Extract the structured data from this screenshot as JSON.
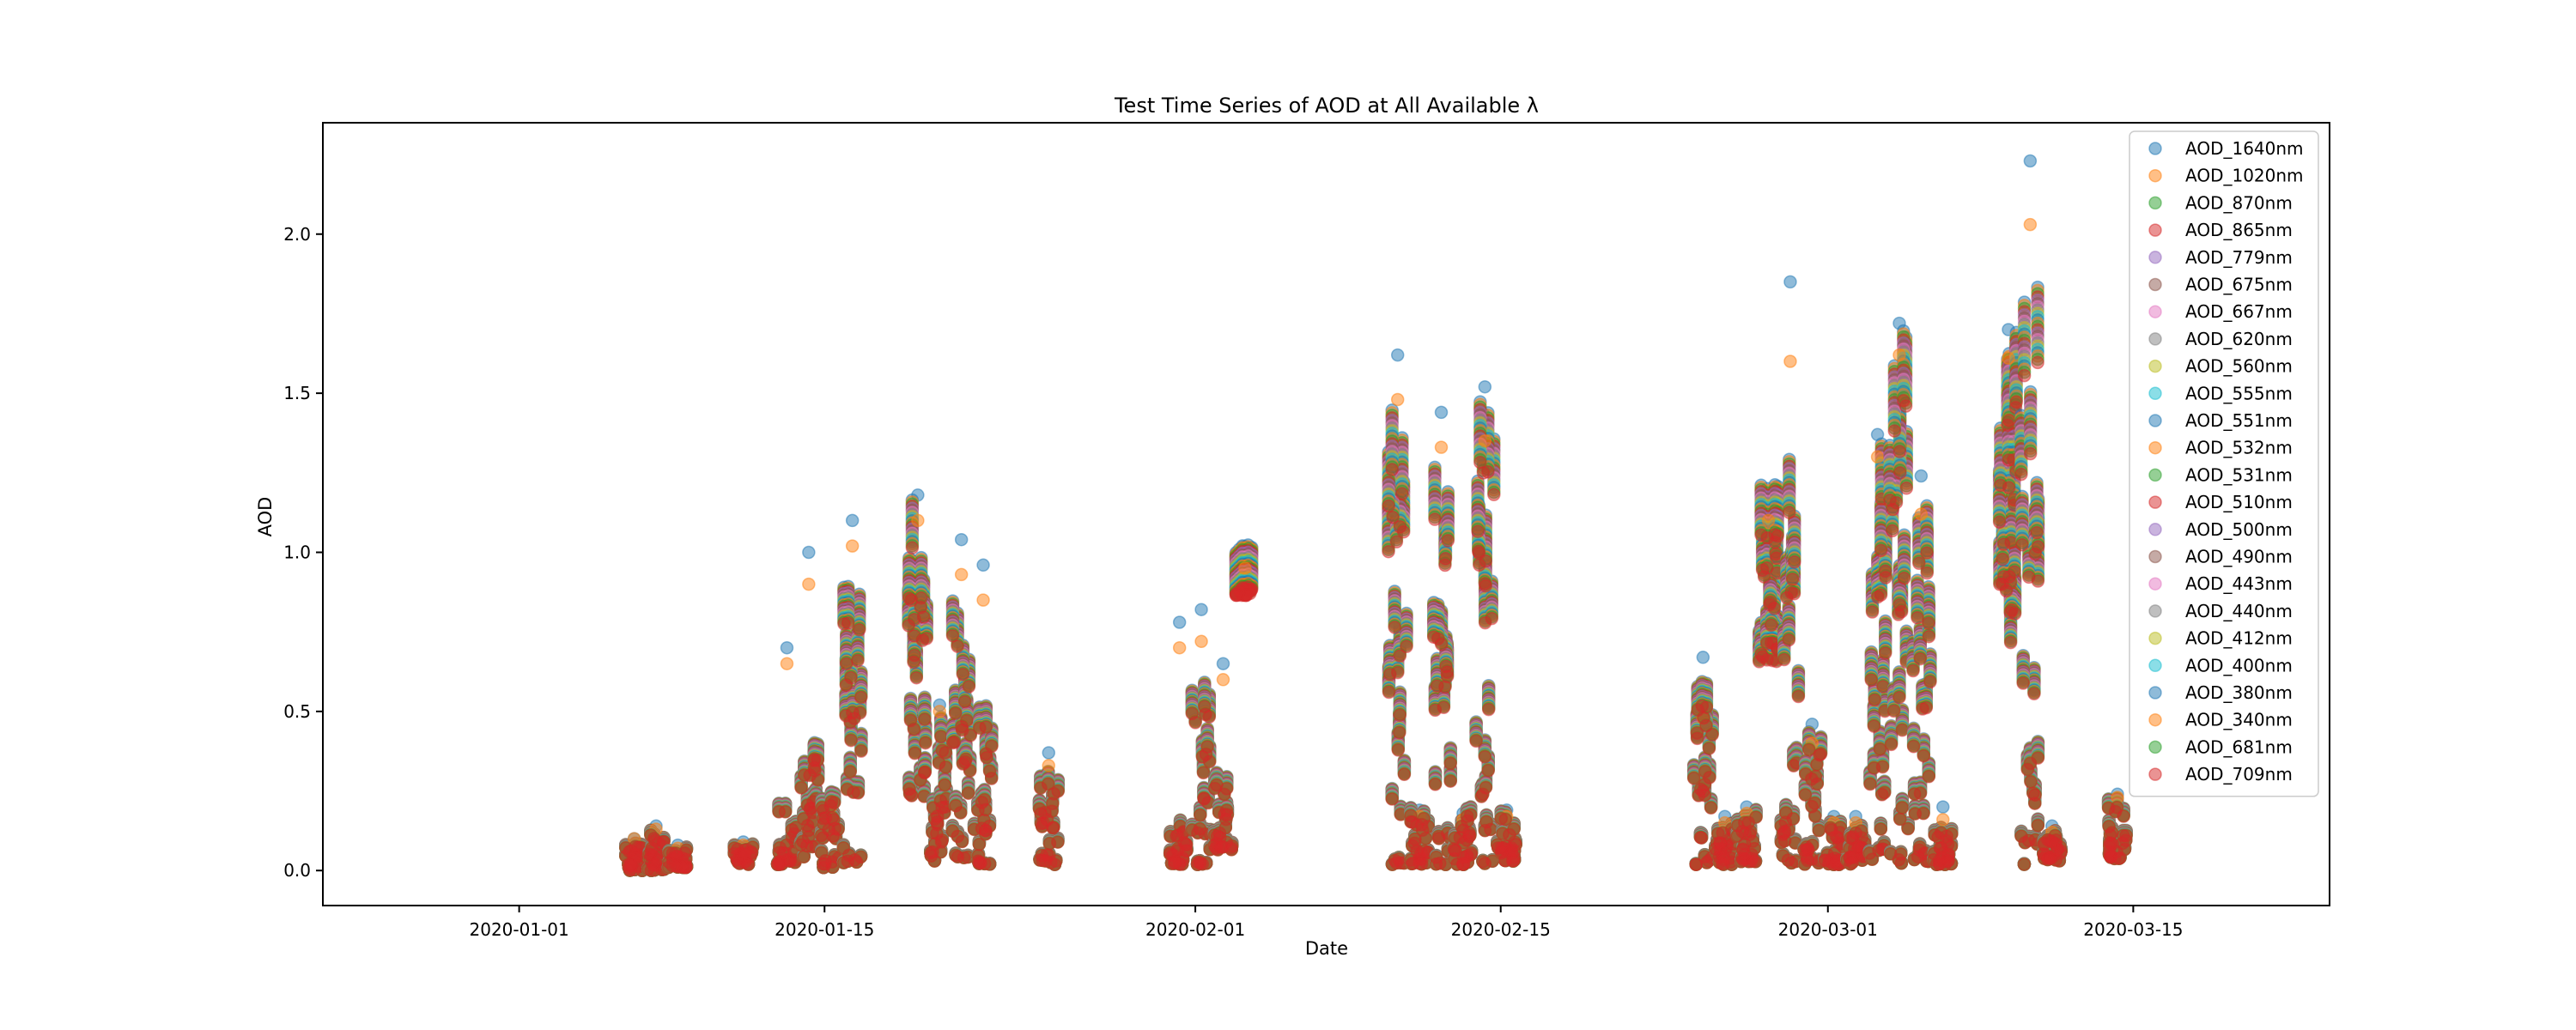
{
  "chart_data": {
    "type": "scatter",
    "title": "Test Time Series of AOD at All Available λ",
    "xlabel": "Date",
    "ylabel": "AOD",
    "x_range": [
      "2019-12-23",
      "2020-03-24"
    ],
    "ylim": [
      -0.11,
      2.35
    ],
    "x_ticks": [
      "2020-01-01",
      "2020-01-15",
      "2020-02-01",
      "2020-02-15",
      "2020-03-01",
      "2020-03-15"
    ],
    "y_ticks": [
      0.0,
      0.5,
      1.0,
      1.5,
      2.0
    ],
    "y_tick_labels": [
      "0.0",
      "0.5",
      "1.0",
      "1.5",
      "2.0"
    ],
    "grid": false,
    "legend_position": "top-right",
    "marker_alpha": 0.5,
    "series_names": [
      "AOD_1640nm",
      "AOD_1020nm",
      "AOD_870nm",
      "AOD_865nm",
      "AOD_779nm",
      "AOD_675nm",
      "AOD_667nm",
      "AOD_620nm",
      "AOD_560nm",
      "AOD_555nm",
      "AOD_551nm",
      "AOD_532nm",
      "AOD_531nm",
      "AOD_510nm",
      "AOD_500nm",
      "AOD_490nm",
      "AOD_443nm",
      "AOD_440nm",
      "AOD_412nm",
      "AOD_400nm",
      "AOD_380nm",
      "AOD_340nm",
      "AOD_681nm",
      "AOD_709nm"
    ],
    "series_colors": [
      "#1f77b4",
      "#ff7f0e",
      "#2ca02c",
      "#d62728",
      "#9467bd",
      "#8c564b",
      "#e377c2",
      "#7f7f7f",
      "#bcbd22",
      "#17becf",
      "#1f77b4",
      "#ff7f0e",
      "#2ca02c",
      "#d62728",
      "#9467bd",
      "#8c564b",
      "#e377c2",
      "#7f7f7f",
      "#bcbd22",
      "#17becf",
      "#1f77b4",
      "#ff7f0e",
      "#2ca02c",
      "#d62728"
    ],
    "clusters": [
      {
        "date": "2020-01-06",
        "low": 0.0,
        "high": 0.09,
        "peak_1640": 0.1,
        "peak_340": 0.1
      },
      {
        "date": "2020-01-07",
        "low": 0.0,
        "high": 0.12,
        "peak_1640": 0.14,
        "peak_340": 0.13
      },
      {
        "date": "2020-01-08",
        "low": 0.01,
        "high": 0.07,
        "peak_1640": 0.08,
        "peak_340": 0.07
      },
      {
        "date": "2020-01-11",
        "low": 0.02,
        "high": 0.08,
        "peak_1640": 0.09,
        "peak_340": 0.08
      },
      {
        "date": "2020-01-13",
        "low": 0.02,
        "high": 0.2,
        "peak_1640": 0.7,
        "peak_340": 0.65
      },
      {
        "date": "2020-01-14",
        "low": 0.02,
        "high": 0.4,
        "peak_1640": 1.0,
        "peak_340": 0.9
      },
      {
        "date": "2020-01-15",
        "low": 0.01,
        "high": 0.25,
        "peak_1640": 0.22,
        "peak_340": 0.2
      },
      {
        "date": "2020-01-16",
        "low": 0.02,
        "high": 0.9,
        "peak_1640": 1.1,
        "peak_340": 1.02
      },
      {
        "date": "2020-01-19",
        "low": 0.25,
        "high": 1.1,
        "peak_1640": 1.18,
        "peak_340": 1.1
      },
      {
        "date": "2020-01-20",
        "low": 0.03,
        "high": 0.5,
        "peak_1640": 0.52,
        "peak_340": 0.5
      },
      {
        "date": "2020-01-21",
        "low": 0.03,
        "high": 0.8,
        "peak_1640": 1.04,
        "peak_340": 0.93
      },
      {
        "date": "2020-01-22",
        "low": 0.02,
        "high": 0.5,
        "peak_1640": 0.96,
        "peak_340": 0.85
      },
      {
        "date": "2020-01-25",
        "low": 0.02,
        "high": 0.3,
        "peak_1640": 0.37,
        "peak_340": 0.33
      },
      {
        "date": "2020-01-31",
        "low": 0.02,
        "high": 0.15,
        "peak_1640": 0.78,
        "peak_340": 0.7
      },
      {
        "date": "2020-02-01",
        "low": 0.02,
        "high": 0.6,
        "peak_1640": 0.82,
        "peak_340": 0.72
      },
      {
        "date": "2020-02-02",
        "low": 0.07,
        "high": 0.3,
        "peak_1640": 0.65,
        "peak_340": 0.6
      },
      {
        "date": "2020-02-03",
        "low": 0.93,
        "high": 0.96,
        "peak_1640": 1.01,
        "peak_340": 0.95
      },
      {
        "date": "2020-02-10",
        "low": 0.02,
        "high": 1.4,
        "peak_1640": 1.62,
        "peak_340": 1.48
      },
      {
        "date": "2020-02-11",
        "low": 0.02,
        "high": 0.2,
        "peak_1640": 0.19,
        "peak_340": 0.17
      },
      {
        "date": "2020-02-12",
        "low": 0.02,
        "high": 1.3,
        "peak_1640": 1.44,
        "peak_340": 1.33
      },
      {
        "date": "2020-02-13",
        "low": 0.02,
        "high": 0.2,
        "peak_1640": 0.18,
        "peak_340": 0.16
      },
      {
        "date": "2020-02-14",
        "low": 0.02,
        "high": 1.4,
        "peak_1640": 1.52,
        "peak_340": 1.35
      },
      {
        "date": "2020-02-15",
        "low": 0.03,
        "high": 0.18,
        "peak_1640": 0.19,
        "peak_340": 0.17
      },
      {
        "date": "2020-02-24",
        "low": 0.02,
        "high": 0.65,
        "peak_1640": 0.67,
        "peak_340": 0.48
      },
      {
        "date": "2020-02-25",
        "low": 0.02,
        "high": 0.15,
        "peak_1640": 0.17,
        "peak_340": 0.15
      },
      {
        "date": "2020-02-26",
        "low": 0.03,
        "high": 0.18,
        "peak_1640": 0.2,
        "peak_340": 0.18
      },
      {
        "date": "2020-02-27",
        "low": 0.7,
        "high": 1.15,
        "peak_1640": 1.18,
        "peak_340": 1.1
      },
      {
        "date": "2020-02-28",
        "low": 0.02,
        "high": 1.7,
        "peak_1640": 1.85,
        "peak_340": 1.6
      },
      {
        "date": "2020-02-29",
        "low": 0.02,
        "high": 0.42,
        "peak_1640": 0.46,
        "peak_340": 0.4
      },
      {
        "date": "2020-03-01",
        "low": 0.02,
        "high": 0.15,
        "peak_1640": 0.17,
        "peak_340": 0.15
      },
      {
        "date": "2020-03-02",
        "low": 0.02,
        "high": 0.15,
        "peak_1640": 0.17,
        "peak_340": 0.15
      },
      {
        "date": "2020-03-03",
        "low": 0.02,
        "high": 1.3,
        "peak_1640": 1.37,
        "peak_340": 1.3
      },
      {
        "date": "2020-03-04",
        "low": 0.02,
        "high": 1.6,
        "peak_1640": 1.72,
        "peak_340": 1.62
      },
      {
        "date": "2020-03-05",
        "low": 0.03,
        "high": 1.1,
        "peak_1640": 1.24,
        "peak_340": 1.12
      },
      {
        "date": "2020-03-06",
        "low": 0.02,
        "high": 0.15,
        "peak_1640": 0.2,
        "peak_340": 0.16
      },
      {
        "date": "2020-03-09",
        "low": 0.77,
        "high": 1.6,
        "peak_1640": 1.7,
        "peak_340": 1.61
      },
      {
        "date": "2020-03-10",
        "low": 0.02,
        "high": 1.9,
        "peak_1640": 2.23,
        "peak_340": 2.03
      },
      {
        "date": "2020-03-11",
        "low": 0.03,
        "high": 0.12,
        "peak_1640": 0.14,
        "peak_340": 0.12
      },
      {
        "date": "2020-03-14",
        "low": 0.04,
        "high": 0.22,
        "peak_1640": 0.24,
        "peak_340": 0.23
      }
    ]
  }
}
